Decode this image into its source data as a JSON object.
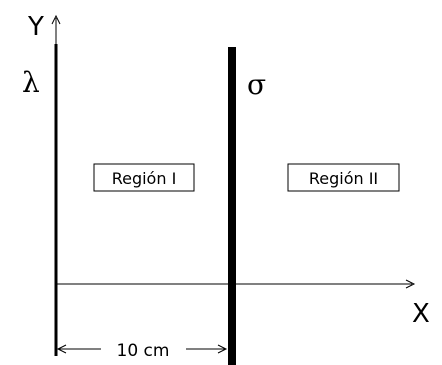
{
  "axes": {
    "y_label": "Y",
    "x_label": "X"
  },
  "symbols": {
    "lambda": "λ",
    "sigma": "σ"
  },
  "regions": {
    "region_1": "Región I",
    "region_2": "Región II"
  },
  "dimension": {
    "distance_label": "10 cm"
  }
}
